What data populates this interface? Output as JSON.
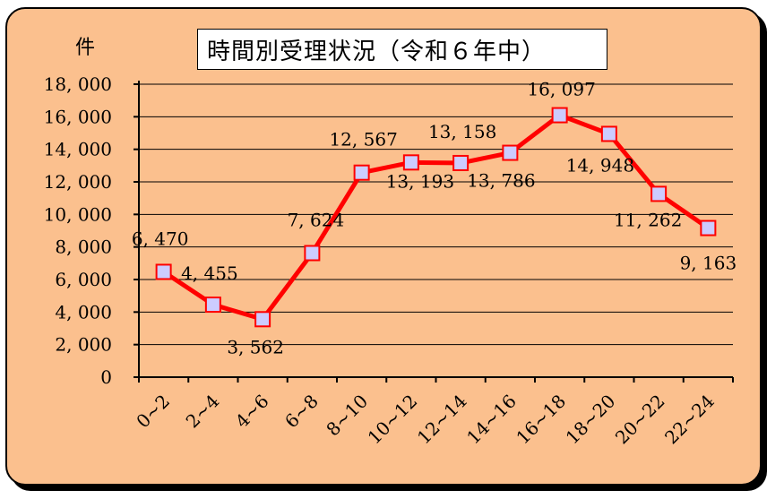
{
  "chart_data": {
    "type": "line",
    "title": "時間別受理状況（令和６年中）",
    "unit": "件",
    "categories": [
      "0~2",
      "2~4",
      "4~6",
      "6~8",
      "8~10",
      "10~12",
      "12~14",
      "14~16",
      "16~18",
      "18~20",
      "20~22",
      "22~24"
    ],
    "values": [
      6470,
      4455,
      3562,
      7624,
      12567,
      13193,
      13158,
      13786,
      16097,
      14948,
      11262,
      9163
    ],
    "value_labels": [
      "6, 470",
      "4, 455",
      "3, 562",
      "7, 624",
      "12, 567",
      "13, 193",
      "13, 158",
      "13, 786",
      "16, 097",
      "14, 948",
      "11, 262",
      "9, 163"
    ],
    "y_ticks": [
      "0",
      "2, 000",
      "4, 000",
      "6, 000",
      "8, 000",
      "10, 000",
      "12, 000",
      "14, 000",
      "16, 000",
      "18, 000"
    ],
    "ylim": [
      0,
      18000
    ],
    "grid": true,
    "legend": "none",
    "colors": {
      "background": "#fbc08e",
      "line": "#ff0000",
      "marker_fill": "#ccccff",
      "marker_stroke": "#ff0000",
      "grid": "#000000"
    }
  }
}
